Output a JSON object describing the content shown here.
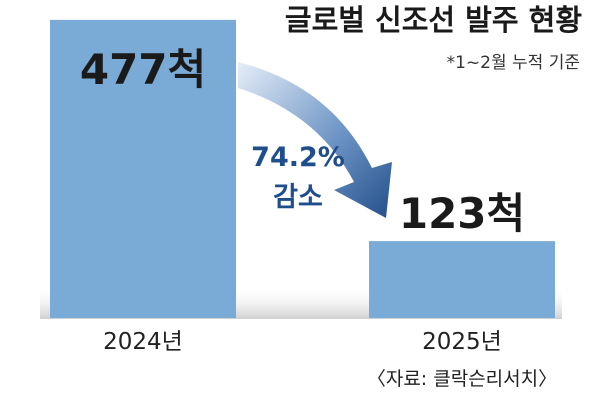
{
  "chart_data": {
    "type": "bar",
    "title": "글로벌 신조선 발주 현황",
    "note": "*1~2월 누적 기준",
    "categories": [
      "2024년",
      "2025년"
    ],
    "values": [
      477,
      123
    ],
    "value_labels": [
      "477척",
      "123척"
    ],
    "annotation": {
      "percent": "74.2%",
      "text": "감소"
    },
    "source": "〈자료: 클락슨리서치〉",
    "ylim": [
      0,
      480
    ],
    "grid": false,
    "colors": {
      "bar": "#7aabd6",
      "arrow_light": "#dce8f4",
      "arrow_dark": "#2b5f9e",
      "floor": "#d0d0d0",
      "annotation": "#1e4e8c"
    }
  }
}
